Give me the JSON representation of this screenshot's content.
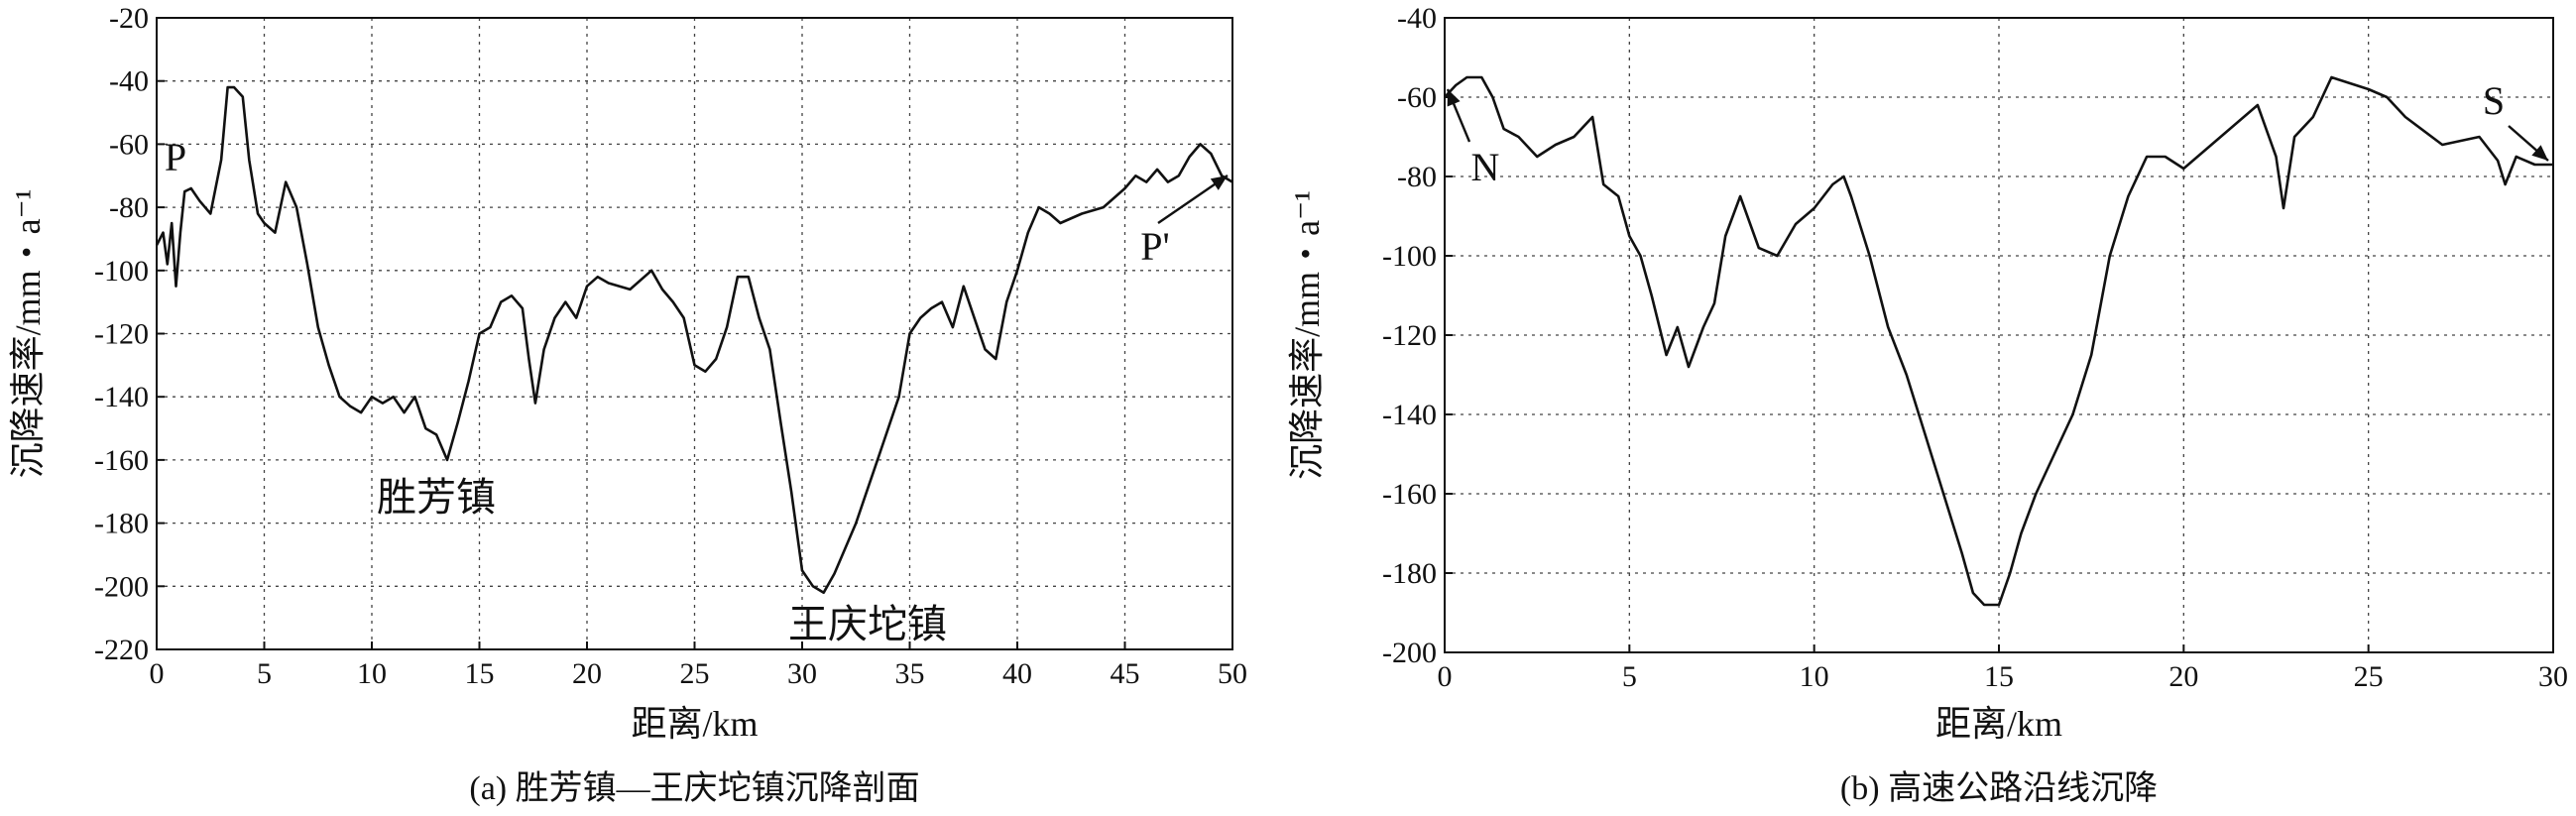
{
  "chart_data": [
    {
      "type": "line",
      "caption": "(a) 胜芳镇—王庆坨镇沉降剖面",
      "xlabel": "距离/km",
      "ylabel": "沉降速率/mm・a⁻¹",
      "xlim": [
        0,
        50
      ],
      "ylim": [
        -220,
        -20
      ],
      "xticks": [
        0,
        5,
        10,
        15,
        20,
        25,
        30,
        35,
        40,
        45,
        50
      ],
      "yticks": [
        -20,
        -40,
        -60,
        -80,
        -100,
        -120,
        -140,
        -160,
        -180,
        -200,
        -220
      ],
      "grid": true,
      "series": [
        {
          "x": [
            0,
            0.3,
            0.5,
            0.7,
            0.9,
            1.1,
            1.3,
            1.6,
            2,
            2.5,
            3,
            3.3,
            3.6,
            4,
            4.3,
            4.7,
            5,
            5.5,
            6,
            6.5,
            7,
            7.5,
            8,
            8.5,
            9,
            9.5,
            10,
            10.5,
            11,
            11.5,
            12,
            12.5,
            13,
            13.5,
            14,
            14.5,
            15,
            15.5,
            16,
            16.5,
            17,
            17.3,
            17.6,
            18,
            18.5,
            19,
            19.5,
            20,
            20.5,
            21,
            22,
            23,
            23.5,
            24,
            24.5,
            25,
            25.5,
            26,
            26.5,
            27,
            27.5,
            28,
            28.5,
            29,
            29.5,
            30,
            30.5,
            31,
            31.5,
            32,
            32.5,
            33,
            33.5,
            34,
            34.5,
            35,
            35.5,
            36,
            36.5,
            37,
            37.5,
            38,
            38.5,
            39,
            39.5,
            40,
            40.5,
            41,
            41.5,
            42,
            43,
            44,
            45,
            45.5,
            46,
            46.5,
            47,
            47.5,
            48,
            48.5,
            49,
            49.5,
            50
          ],
          "y": [
            -92,
            -88,
            -98,
            -85,
            -105,
            -88,
            -75,
            -74,
            -78,
            -82,
            -65,
            -42,
            -42,
            -45,
            -65,
            -82,
            -85,
            -88,
            -72,
            -80,
            -98,
            -118,
            -130,
            -140,
            -143,
            -145,
            -140,
            -142,
            -140,
            -145,
            -140,
            -150,
            -152,
            -160,
            -148,
            -135,
            -120,
            -118,
            -110,
            -108,
            -112,
            -128,
            -142,
            -125,
            -115,
            -110,
            -115,
            -105,
            -102,
            -104,
            -106,
            -100,
            -106,
            -110,
            -115,
            -130,
            -132,
            -128,
            -118,
            -102,
            -102,
            -115,
            -125,
            -148,
            -170,
            -195,
            -200,
            -202,
            -196,
            -188,
            -180,
            -170,
            -160,
            -150,
            -140,
            -120,
            -115,
            -112,
            -110,
            -118,
            -105,
            -115,
            -125,
            -128,
            -110,
            -100,
            -88,
            -80,
            -82,
            -85,
            -82,
            -80,
            -74,
            -70,
            -72,
            -68,
            -72,
            -70,
            -64,
            -60,
            -63,
            -70,
            -72
          ]
        }
      ],
      "annotations": [
        {
          "text": "P",
          "x": 1.0,
          "y": -68
        },
        {
          "text": "P'",
          "x": 46.5,
          "y": -92
        },
        {
          "text": "胜芳镇",
          "x": 13.0,
          "y": -170
        },
        {
          "text": "王庆坨镇",
          "x": 33.5,
          "y": -213
        }
      ]
    },
    {
      "type": "line",
      "caption": "(b) 高速公路沿线沉降",
      "xlabel": "距离/km",
      "ylabel": "沉降速率/mm・a⁻¹",
      "xlim": [
        0,
        30
      ],
      "ylim": [
        -200,
        -40
      ],
      "xticks": [
        0,
        5,
        10,
        15,
        20,
        25,
        30
      ],
      "yticks": [
        -40,
        -60,
        -80,
        -100,
        -120,
        -140,
        -160,
        -180,
        -200
      ],
      "grid": true,
      "series": [
        {
          "x": [
            0,
            0.3,
            0.6,
            1,
            1.3,
            1.6,
            2,
            2.5,
            3,
            3.5,
            4,
            4.3,
            4.7,
            5,
            5.3,
            5.6,
            6,
            6.3,
            6.6,
            7,
            7.3,
            7.6,
            8,
            8.5,
            9,
            9.5,
            10,
            10.5,
            10.8,
            11,
            11.5,
            12,
            12.5,
            13,
            13.5,
            14,
            14.3,
            14.6,
            15,
            15.3,
            15.6,
            16,
            16.5,
            17,
            17.5,
            18,
            18.5,
            19,
            19.5,
            20,
            21,
            22,
            22.5,
            22.7,
            23,
            23.5,
            24,
            25,
            25.5,
            26,
            27,
            28,
            28.5,
            28.7,
            29,
            29.5,
            30
          ],
          "y": [
            -60,
            -57,
            -55,
            -55,
            -60,
            -68,
            -70,
            -75,
            -72,
            -70,
            -65,
            -82,
            -85,
            -95,
            -100,
            -110,
            -125,
            -118,
            -128,
            -118,
            -112,
            -95,
            -85,
            -98,
            -100,
            -92,
            -88,
            -82,
            -80,
            -85,
            -100,
            -118,
            -130,
            -145,
            -160,
            -175,
            -185,
            -188,
            -188,
            -180,
            -170,
            -160,
            -150,
            -140,
            -125,
            -100,
            -85,
            -75,
            -75,
            -78,
            -70,
            -62,
            -75,
            -88,
            -70,
            -65,
            -55,
            -58,
            -60,
            -65,
            -72,
            -70,
            -76,
            -82,
            -75,
            -77,
            -77
          ]
        }
      ],
      "annotations": [
        {
          "text": "N",
          "x": 0.6,
          "y": -84
        },
        {
          "text": "S",
          "x": 28.6,
          "y": -62
        }
      ]
    }
  ]
}
